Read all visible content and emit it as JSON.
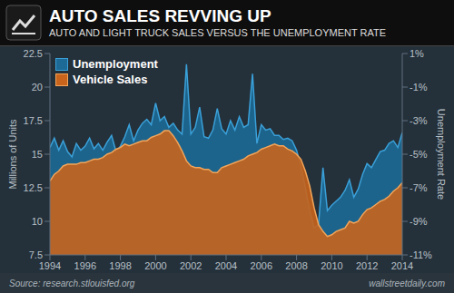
{
  "chart_data": {
    "type": "area",
    "title": "AUTO SALES REVVING UP",
    "subtitle": "AUTO AND LIGHT TRUCK SALES VERSUS THE UNEMPLOYMENT RATE",
    "source": "Source: research.stlouisfed.org",
    "credit": "wallstreetdaily.com",
    "ylabel": "Millions of Units",
    "y2label": "Unemployment Rate",
    "legend": "upper left",
    "grid": false,
    "x": [
      1994,
      1994.25,
      1994.5,
      1994.75,
      1995,
      1995.25,
      1995.5,
      1995.75,
      1996,
      1996.25,
      1996.5,
      1996.75,
      1997,
      1997.25,
      1997.5,
      1997.75,
      1998,
      1998.25,
      1998.5,
      1998.75,
      1999,
      1999.25,
      1999.5,
      1999.75,
      2000,
      2000.25,
      2000.5,
      2000.75,
      2001,
      2001.25,
      2001.5,
      2001.75,
      2002,
      2002.25,
      2002.5,
      2002.75,
      2003,
      2003.25,
      2003.5,
      2003.75,
      2004,
      2004.25,
      2004.5,
      2004.75,
      2005,
      2005.25,
      2005.5,
      2005.75,
      2006,
      2006.25,
      2006.5,
      2006.75,
      2007,
      2007.25,
      2007.5,
      2007.75,
      2008,
      2008.25,
      2008.5,
      2008.75,
      2009,
      2009.25,
      2009.5,
      2009.75,
      2010,
      2010.25,
      2010.5,
      2010.75,
      2011,
      2011.25,
      2011.5,
      2011.75,
      2012,
      2012.25,
      2012.5,
      2012.75,
      2013,
      2013.25,
      2013.5,
      2013.75,
      2014
    ],
    "xlim": [
      1994,
      2014
    ],
    "xticks": [
      1994,
      1996,
      1998,
      2000,
      2002,
      2004,
      2006,
      2008,
      2010,
      2012,
      2014
    ],
    "ylim": [
      7.5,
      22.5
    ],
    "yticks": [
      7.5,
      10,
      12.5,
      15,
      17.5,
      20,
      22.5
    ],
    "y2lim": [
      -11,
      1
    ],
    "y2ticks": [
      {
        "value": 1,
        "label": "1%"
      },
      {
        "value": -1,
        "label": "-1%"
      },
      {
        "value": -3,
        "label": "-3%"
      },
      {
        "value": -5,
        "label": "-5%"
      },
      {
        "value": -7,
        "label": "-7%"
      },
      {
        "value": -9,
        "label": "-9%"
      },
      {
        "value": -11,
        "label": "-11%"
      }
    ],
    "series": [
      {
        "name": "Unemployment",
        "color": "#1d6a96",
        "values": [
          15.5,
          16.2,
          15.3,
          16.0,
          15.2,
          14.8,
          15.8,
          15.3,
          15.6,
          16.2,
          15.4,
          15.8,
          15.3,
          15.9,
          16.4,
          15.2,
          15.6,
          16.3,
          17.2,
          16.0,
          16.8,
          17.3,
          17.6,
          17.2,
          18.8,
          17.5,
          17.8,
          17.0,
          17.3,
          16.8,
          16.5,
          21.7,
          16.5,
          17.0,
          18.5,
          16.3,
          16.2,
          16.8,
          18.4,
          16.9,
          16.5,
          17.5,
          16.8,
          17.8,
          17.0,
          17.2,
          21.0,
          15.8,
          17.2,
          16.8,
          16.9,
          16.4,
          16.4,
          16.1,
          16.2,
          16.0,
          15.3,
          14.1,
          12.5,
          10.8,
          9.5,
          9.8,
          14.0,
          10.8,
          11.2,
          11.5,
          11.8,
          12.3,
          13.1,
          11.8,
          12.4,
          13.5,
          14.3,
          14.0,
          14.6,
          15.2,
          15.3,
          15.8,
          16.0,
          15.5,
          16.6
        ]
      },
      {
        "name": "Vehicle Sales",
        "color": "#c8641c",
        "axis": "y2",
        "values": [
          -6.6,
          -6.2,
          -6.0,
          -5.7,
          -5.6,
          -5.6,
          -5.6,
          -5.5,
          -5.5,
          -5.4,
          -5.3,
          -5.3,
          -5.2,
          -5.0,
          -4.9,
          -4.7,
          -4.6,
          -4.4,
          -4.5,
          -4.4,
          -4.3,
          -4.2,
          -4.2,
          -4.0,
          -3.9,
          -3.8,
          -3.6,
          -3.6,
          -3.9,
          -4.3,
          -4.8,
          -5.4,
          -5.7,
          -5.8,
          -5.8,
          -5.9,
          -5.9,
          -6.1,
          -6.1,
          -5.8,
          -5.7,
          -5.6,
          -5.5,
          -5.4,
          -5.3,
          -5.1,
          -5.0,
          -4.9,
          -4.7,
          -4.6,
          -4.5,
          -4.4,
          -4.5,
          -4.5,
          -4.7,
          -4.8,
          -5.0,
          -5.3,
          -6.0,
          -6.9,
          -8.2,
          -9.2,
          -9.6,
          -9.9,
          -9.8,
          -9.6,
          -9.5,
          -9.4,
          -9.0,
          -9.1,
          -9.0,
          -8.6,
          -8.3,
          -8.2,
          -8.0,
          -7.8,
          -7.7,
          -7.5,
          -7.2,
          -7.0,
          -6.7
        ]
      }
    ]
  }
}
